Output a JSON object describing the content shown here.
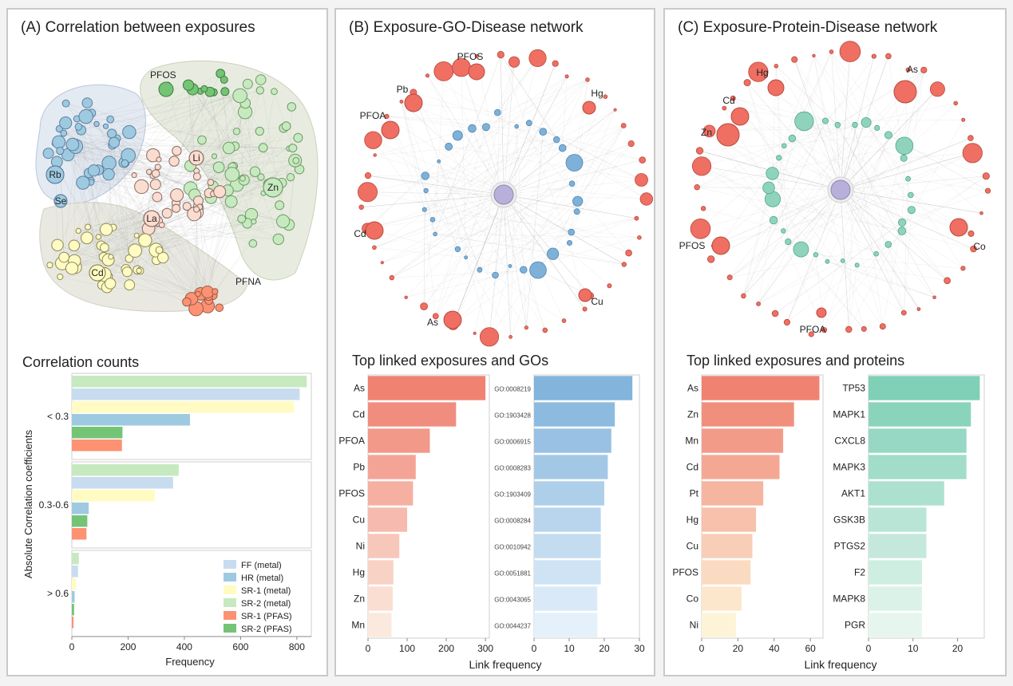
{
  "panels": {
    "a": {
      "title": "(A)  Correlation between exposures",
      "chart_title": "Correlation counts"
    },
    "b": {
      "title": "(B)  Exposure-GO-Disease network",
      "chart_title": "Top linked exposures and GOs"
    },
    "c": {
      "title": "(C)  Exposure-Protein-Disease network",
      "chart_title": "Top linked exposures and proteins"
    }
  },
  "network_labels": {
    "a": [
      "PFOS",
      "Li",
      "Rb",
      "Se",
      "La",
      "Zn",
      "Cd",
      "PFNA"
    ],
    "b": [
      "PFOS",
      "Pb",
      "PFOA",
      "Hg",
      "Cd",
      "As",
      "Cu"
    ],
    "c": [
      "Hg",
      "As",
      "Cd",
      "Zn",
      "PFOS",
      "Co",
      "PFOA"
    ]
  },
  "colors": {
    "FF": "#c7dcef",
    "HR": "#9ecae1",
    "SR1_metal": "#fffbc3",
    "SR2_metal": "#c7e9c0",
    "SR1_PFAS": "#fc9272",
    "SR2_PFAS": "#74c476",
    "exposure": "#ef6f62",
    "go": "#7eb1d8",
    "protein": "#8fd3bd",
    "disease": "#b8b0da"
  },
  "chart_data": [
    {
      "type": "bar",
      "title": "Correlation counts",
      "orientation": "horizontal",
      "categories": [
        "< 0.3",
        "0.3-0.6",
        "> 0.6"
      ],
      "xlabel": "Frequency",
      "ylabel": "Absolute Correlation coefficients",
      "xlim": [
        0,
        840
      ],
      "xticks": [
        0,
        200,
        400,
        600,
        800
      ],
      "series": [
        {
          "name": "SR-2 (metal)",
          "color": "#c7e9c0",
          "values": [
            835,
            380,
            25
          ]
        },
        {
          "name": "FF (metal)",
          "color": "#c7dcef",
          "values": [
            810,
            360,
            22
          ]
        },
        {
          "name": "SR-1 (metal)",
          "color": "#fffbc3",
          "values": [
            790,
            295,
            15
          ]
        },
        {
          "name": "HR (metal)",
          "color": "#9ecae1",
          "values": [
            420,
            60,
            10
          ]
        },
        {
          "name": "SR-2 (PFAS)",
          "color": "#74c476",
          "values": [
            180,
            55,
            8
          ]
        },
        {
          "name": "SR-1 (PFAS)",
          "color": "#fc9272",
          "values": [
            178,
            52,
            6
          ]
        }
      ],
      "legend": [
        "FF (metal)",
        "HR (metal)",
        "SR-1 (metal)",
        "SR-2 (metal)",
        "SR-1 (PFAS)",
        "SR-2 (PFAS)"
      ],
      "legend_colors": [
        "#c7dcef",
        "#9ecae1",
        "#fffbc3",
        "#c7e9c0",
        "#fc9272",
        "#74c476"
      ]
    },
    {
      "type": "bar",
      "orientation": "horizontal",
      "title": "Top linked exposures",
      "categories": [
        "As",
        "Cd",
        "PFOA",
        "Pb",
        "PFOS",
        "Cu",
        "Ni",
        "Hg",
        "Zn",
        "Mn"
      ],
      "values": [
        300,
        225,
        158,
        122,
        115,
        100,
        80,
        65,
        63,
        60
      ],
      "xlim": [
        0,
        310
      ],
      "xticks": [
        0,
        100,
        200,
        300
      ],
      "palette": "reds"
    },
    {
      "type": "bar",
      "orientation": "horizontal",
      "title": "Top linked GOs",
      "categories": [
        "GO:0008219",
        "GO:1903428",
        "GO:0006915",
        "GO:0008283",
        "GO:1903409",
        "GO:0008284",
        "GO:0010942",
        "GO:0051881",
        "GO:0043065",
        "GO:0044237"
      ],
      "values": [
        28,
        23,
        22,
        21,
        20,
        19,
        19,
        19,
        18,
        18
      ],
      "xlim": [
        0,
        30
      ],
      "xticks": [
        0,
        10,
        20,
        30
      ],
      "xlabel": "Link frequency",
      "palette": "blues"
    },
    {
      "type": "bar",
      "orientation": "horizontal",
      "title": "Top linked exposures (protein)",
      "categories": [
        "As",
        "Zn",
        "Mn",
        "Cd",
        "Pt",
        "Hg",
        "Cu",
        "PFOS",
        "Co",
        "Ni"
      ],
      "values": [
        65,
        51,
        45,
        43,
        34,
        30,
        28,
        27,
        22,
        19
      ],
      "xlim": [
        0,
        67
      ],
      "xticks": [
        0,
        20,
        40,
        60
      ],
      "palette": "oranges"
    },
    {
      "type": "bar",
      "orientation": "horizontal",
      "title": "Top linked proteins",
      "categories": [
        "TP53",
        "MAPK1",
        "CXCL8",
        "MAPK3",
        "AKT1",
        "GSK3B",
        "PTGS2",
        "F2",
        "MAPK8",
        "PGR"
      ],
      "values": [
        25,
        23,
        22,
        22,
        17,
        13,
        13,
        12,
        12,
        12
      ],
      "xlim": [
        0,
        26
      ],
      "xticks": [
        0,
        10,
        20
      ],
      "xlabel": "Link frequency",
      "palette": "greens"
    }
  ]
}
